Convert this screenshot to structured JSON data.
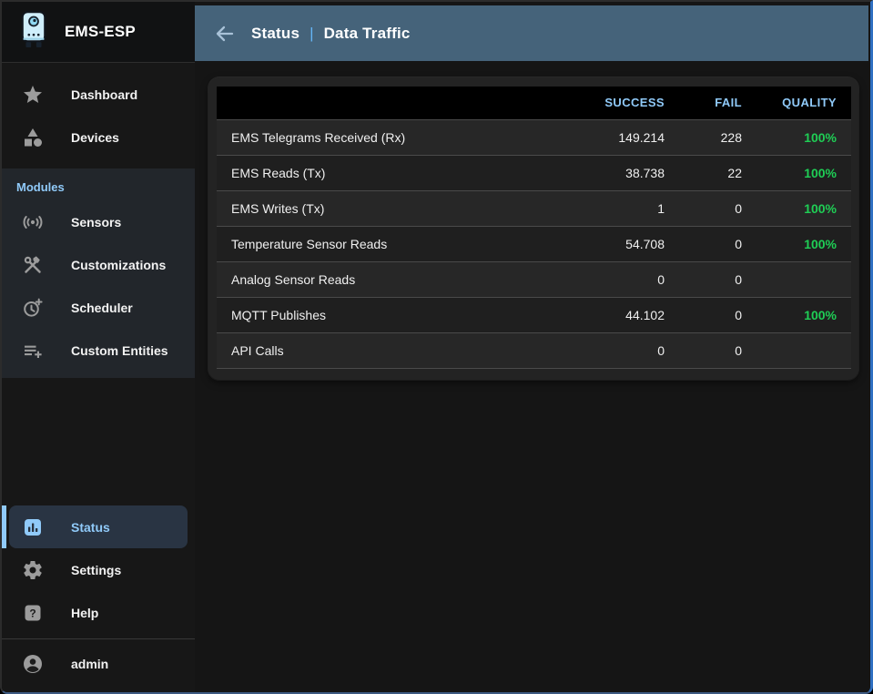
{
  "colors": {
    "accent": "#90caf9",
    "separator": "#64b5f6",
    "success": "#1fce55",
    "appbar": "#45637a",
    "frame_blue": "#2f6fc1"
  },
  "app": {
    "title": "EMS-ESP"
  },
  "appbar": {
    "back_icon": "arrow-back-icon",
    "breadcrumb": {
      "section": "Status",
      "separator": "|",
      "page": "Data Traffic"
    }
  },
  "sidebar": {
    "main_items": [
      {
        "icon": "star-icon",
        "label": "Dashboard"
      },
      {
        "icon": "category-icon",
        "label": "Devices"
      }
    ],
    "modules_header": "Modules",
    "module_items": [
      {
        "icon": "sensors-icon",
        "label": "Sensors"
      },
      {
        "icon": "tools-icon",
        "label": "Customizations"
      },
      {
        "icon": "clock-plus-icon",
        "label": "Scheduler"
      },
      {
        "icon": "playlist-add-icon",
        "label": "Custom Entities"
      }
    ],
    "bottom_items": [
      {
        "icon": "bar-chart-icon",
        "label": "Status",
        "selected": true
      },
      {
        "icon": "gear-icon",
        "label": "Settings"
      },
      {
        "icon": "help-icon",
        "label": "Help"
      }
    ],
    "user": {
      "icon": "account-icon",
      "label": "admin"
    }
  },
  "table": {
    "columns": [
      "SUCCESS",
      "FAIL",
      "QUALITY"
    ],
    "rows": [
      {
        "name": "EMS Telegrams Received (Rx)",
        "success": "149.214",
        "fail": "228",
        "quality": "100%"
      },
      {
        "name": "EMS Reads (Tx)",
        "success": "38.738",
        "fail": "22",
        "quality": "100%"
      },
      {
        "name": "EMS Writes (Tx)",
        "success": "1",
        "fail": "0",
        "quality": "100%"
      },
      {
        "name": "Temperature Sensor Reads",
        "success": "54.708",
        "fail": "0",
        "quality": "100%"
      },
      {
        "name": "Analog Sensor Reads",
        "success": "0",
        "fail": "0",
        "quality": ""
      },
      {
        "name": "MQTT Publishes",
        "success": "44.102",
        "fail": "0",
        "quality": "100%"
      },
      {
        "name": "API Calls",
        "success": "0",
        "fail": "0",
        "quality": ""
      }
    ]
  }
}
